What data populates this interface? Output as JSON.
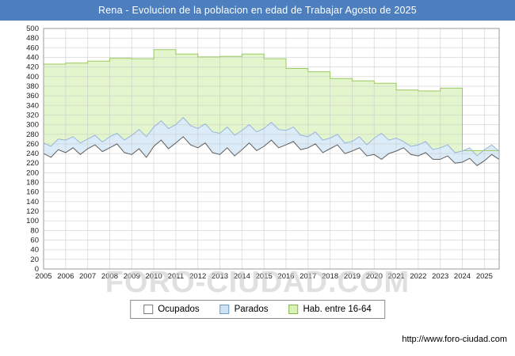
{
  "header": {
    "title": "Rena - Evolucion de la poblacion en edad de Trabajar Agosto de 2025",
    "bg": "#4d7fbe"
  },
  "watermark": "FORO-CIUDAD.COM",
  "footer": {
    "url": "http://www.foro-ciudad.com"
  },
  "legend": {
    "items": [
      {
        "label": "Ocupados",
        "fill": "#ffffff",
        "border": "#7a7a7a"
      },
      {
        "label": "Parados",
        "fill": "#cfe2f3",
        "border": "#6f9bc8"
      },
      {
        "label": "Hab. entre 16-64",
        "fill": "#d9f2b8",
        "border": "#85b64a"
      }
    ]
  },
  "chart_data": {
    "type": "area",
    "title": "Rena - Evolucion de la poblacion en edad de Trabajar Agosto de 2025",
    "xlim": [
      2005,
      2025.67
    ],
    "ylim": [
      0,
      500
    ],
    "ytick_step": 20,
    "xticks": [
      2005,
      2006,
      2007,
      2008,
      2009,
      2010,
      2011,
      2012,
      2013,
      2014,
      2015,
      2016,
      2017,
      2018,
      2019,
      2020,
      2021,
      2022,
      2023,
      2024,
      2025
    ],
    "grid": true,
    "legend_position": "bottom",
    "series": [
      {
        "name": "Hab. entre 16-64",
        "type": "step-yearly",
        "x_start": 2005,
        "x_step": 1,
        "fill": "#e3f5cc",
        "stroke": "#9cc95e",
        "values": [
          426,
          428,
          432,
          438,
          437,
          456,
          447,
          441,
          442,
          447,
          437,
          417,
          410,
          396,
          391,
          386,
          372,
          370,
          376,
          246,
          246
        ]
      },
      {
        "name": "Parados",
        "type": "line",
        "stacked": true,
        "x_start": 2005,
        "x_step": 0.33333,
        "fill": "#dcebf8",
        "stroke": "#97b6da",
        "values": [
          262,
          255,
          270,
          268,
          275,
          262,
          270,
          278,
          264,
          275,
          282,
          268,
          278,
          290,
          275,
          295,
          308,
          292,
          300,
          315,
          298,
          292,
          302,
          285,
          282,
          295,
          278,
          288,
          300,
          285,
          292,
          305,
          290,
          288,
          295,
          278,
          275,
          285,
          268,
          272,
          280,
          262,
          265,
          275,
          258,
          272,
          282,
          268,
          272,
          265,
          255,
          258,
          265,
          248,
          252,
          258,
          242,
          245,
          252,
          235,
          248,
          258,
          245
        ]
      },
      {
        "name": "Ocupados",
        "type": "line",
        "x_start": 2005,
        "x_step": 0.33333,
        "fill": "#ffffff",
        "stroke": "#5f5f5f",
        "values": [
          240,
          232,
          248,
          242,
          252,
          238,
          250,
          258,
          244,
          252,
          260,
          242,
          238,
          250,
          232,
          255,
          268,
          250,
          262,
          275,
          258,
          252,
          262,
          242,
          238,
          252,
          235,
          248,
          262,
          246,
          255,
          268,
          252,
          258,
          265,
          248,
          252,
          260,
          242,
          250,
          258,
          240,
          245,
          252,
          235,
          238,
          228,
          240,
          245,
          252,
          238,
          235,
          242,
          228,
          228,
          235,
          220,
          222,
          230,
          215,
          225,
          238,
          228
        ]
      }
    ]
  }
}
